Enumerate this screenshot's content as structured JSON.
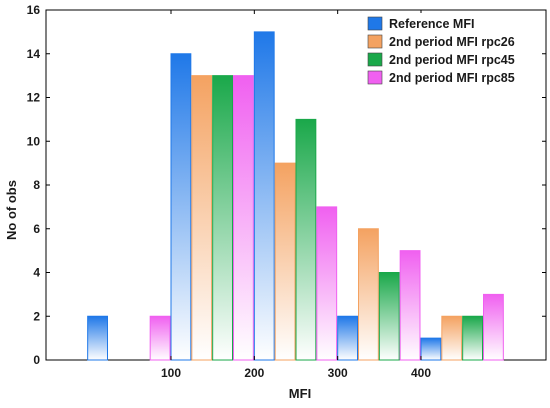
{
  "chart_data": {
    "type": "bar",
    "xlabel": "MFI",
    "ylabel": "No of obs",
    "ylim": [
      0,
      16
    ],
    "yticks": [
      0,
      2,
      4,
      6,
      8,
      10,
      12,
      14,
      16
    ],
    "xlim": [
      -50,
      550
    ],
    "xticks": [
      100,
      200,
      300,
      400
    ],
    "bin_width": 100,
    "bins": [
      0,
      100,
      200,
      300,
      400
    ],
    "grid": false,
    "legend_position": "top-right",
    "series": [
      {
        "name": "Reference MFI",
        "color": "#1f78e8",
        "values": [
          2,
          14,
          15,
          2,
          1
        ]
      },
      {
        "name": "2nd period MFI rpc26",
        "color": "#f4a261",
        "values": [
          0,
          13,
          9,
          6,
          2
        ]
      },
      {
        "name": "2nd period MFI rpc45",
        "color": "#1aa84a",
        "values": [
          0,
          13,
          11,
          4,
          2
        ]
      },
      {
        "name": "2nd period MFI rpc85",
        "color": "#f060f0",
        "values": [
          2,
          13,
          7,
          5,
          3
        ]
      }
    ]
  }
}
